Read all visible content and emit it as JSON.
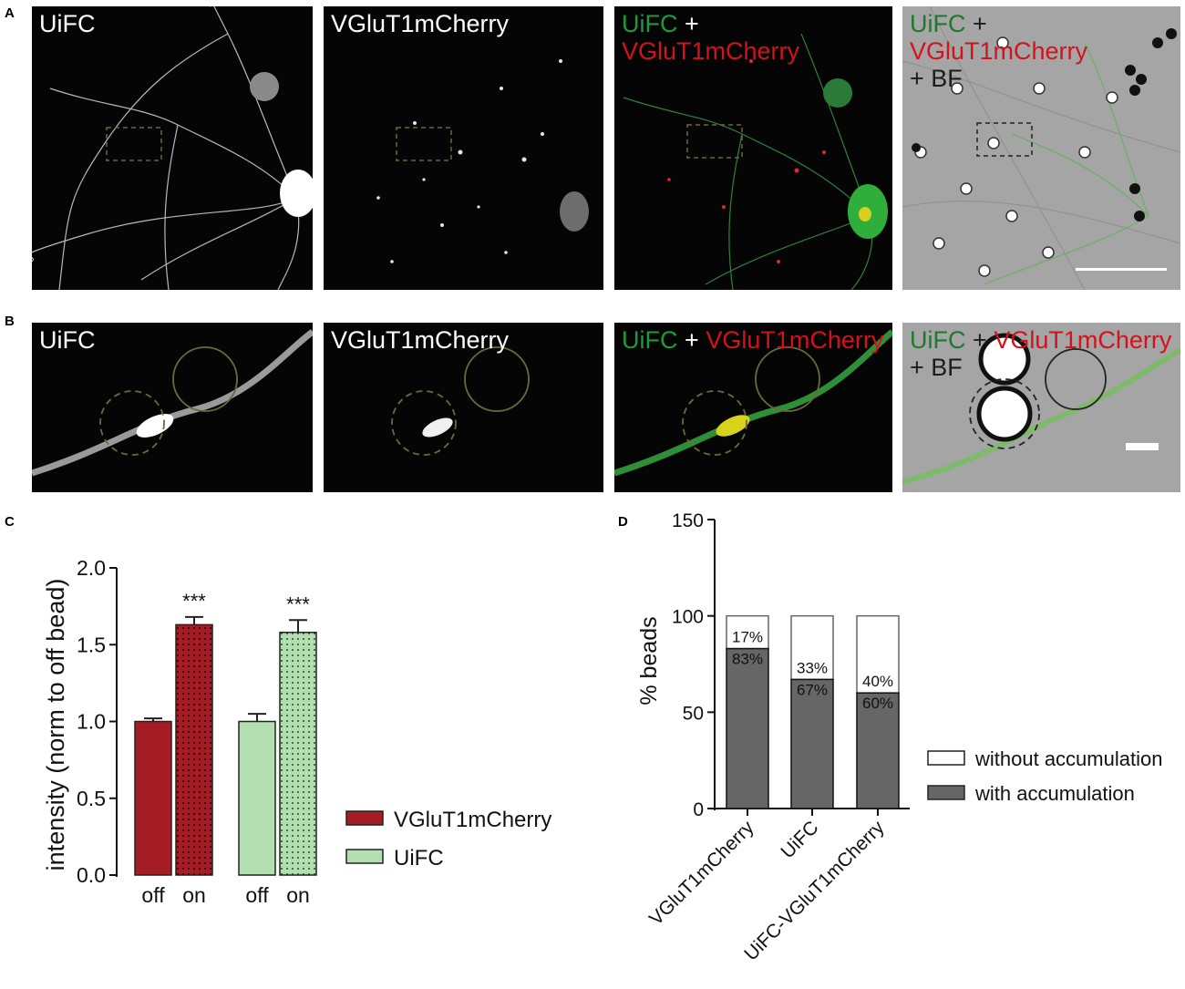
{
  "panel_labels": [
    "A",
    "B",
    "C",
    "D"
  ],
  "row_a": {
    "p1": {
      "t1": "UiFC"
    },
    "p2": {
      "t1": "VGluT1mCherry"
    },
    "p3": {
      "t1": "UiFC",
      "t2": "+",
      "t3": "VGluT1mCherry"
    },
    "p4": {
      "t1": "UiFC",
      "t2": "+",
      "t3": "VGluT1mCherry",
      "t4": "+ BF"
    }
  },
  "row_b": {
    "p1": {
      "t1": "UiFC"
    },
    "p2": {
      "t1": "VGluT1mCherry"
    },
    "p3": {
      "t1": "UiFC",
      "t2": "+",
      "t3": "VGluT1mCherry"
    },
    "p4": {
      "t1": "UiFC",
      "t2": "+",
      "t3": "VGluT1mCherry",
      "t4": "+ BF"
    }
  },
  "colors": {
    "vglut_red": "#a51c24",
    "uifc_green": "#b3dfb0",
    "gfp_green": "#1f9a3a",
    "mcherry_red": "#d3121b",
    "bar_dark": "#666666"
  },
  "chart_data": [
    {
      "type": "bar",
      "panel": "C",
      "ylabel": "intensity (norm to off bead)",
      "ylim": [
        0,
        2.0
      ],
      "yticks": [
        "0.0",
        "0.5",
        "1.0",
        "1.5",
        "2.0"
      ],
      "categories": [
        "off",
        "on",
        "off",
        "on"
      ],
      "values": [
        1.0,
        1.63,
        1.0,
        1.58
      ],
      "errors": [
        0.02,
        0.05,
        0.05,
        0.08
      ],
      "groups": [
        "VGluT1mCherry",
        "VGluT1mCherry",
        "UiFC",
        "UiFC"
      ],
      "significance": [
        "",
        "***",
        "",
        "***"
      ],
      "legend": [
        "VGluT1mCherry",
        "UiFC"
      ]
    },
    {
      "type": "bar",
      "stacked": true,
      "panel": "D",
      "ylabel": "% beads",
      "ylim": [
        0,
        150
      ],
      "yticks": [
        "0",
        "50",
        "100",
        "150"
      ],
      "categories": [
        "VGluT1mCherry",
        "UiFC",
        "UiFC-VGluT1mCherry"
      ],
      "series": [
        {
          "name": "with accumulation",
          "values": [
            83,
            67,
            60
          ],
          "labels": [
            "83%",
            "67%",
            "60%"
          ]
        },
        {
          "name": "without accumulation",
          "values": [
            17,
            33,
            40
          ],
          "labels": [
            "17%",
            "33%",
            "40%"
          ]
        }
      ],
      "legend": [
        "without accumulation",
        "with accumulation"
      ]
    }
  ]
}
